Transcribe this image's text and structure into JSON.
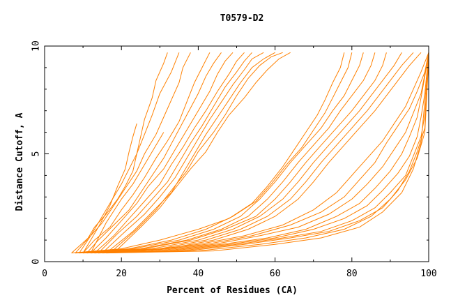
{
  "chart_data": {
    "type": "line",
    "title": "T0579-D2",
    "xlabel": "Percent of Residues (CA)",
    "ylabel": "Distance Cutoff, A",
    "xlim": [
      0,
      100
    ],
    "ylim": [
      0,
      10
    ],
    "x_ticks": [
      "0",
      "20",
      "40",
      "60",
      "80",
      "100"
    ],
    "y_ticks": [
      "0",
      "5",
      "10"
    ],
    "grid": false,
    "line_color": "#FF8000",
    "series": [
      {
        "x": [
          7,
          12,
          14,
          16,
          18,
          20,
          22,
          24,
          25,
          26,
          28,
          29,
          31,
          32
        ],
        "y": [
          0.4,
          1.2,
          1.8,
          2.4,
          3.0,
          3.6,
          4.3,
          5.0,
          5.8,
          6.6,
          7.6,
          8.4,
          9.2,
          9.7
        ]
      },
      {
        "x": [
          8,
          11,
          13,
          16,
          19,
          21,
          23,
          24,
          26,
          28,
          30,
          33,
          35
        ],
        "y": [
          0.4,
          1.0,
          1.6,
          2.2,
          2.9,
          3.5,
          4.2,
          5.0,
          5.9,
          6.8,
          7.8,
          8.8,
          9.7
        ]
      },
      {
        "x": [
          9,
          12,
          15,
          18,
          21,
          24,
          26,
          29,
          31,
          33,
          35,
          36,
          38
        ],
        "y": [
          0.4,
          1.2,
          1.8,
          2.6,
          3.4,
          4.2,
          5.0,
          5.9,
          6.7,
          7.5,
          8.3,
          9.0,
          9.7
        ]
      },
      {
        "x": [
          10,
          13,
          17,
          20,
          23,
          26,
          29,
          32,
          35,
          37,
          39,
          41,
          43
        ],
        "y": [
          0.4,
          1.0,
          1.6,
          2.4,
          3.1,
          3.9,
          4.8,
          5.6,
          6.5,
          7.4,
          8.3,
          9.0,
          9.7
        ]
      },
      {
        "x": [
          11,
          14,
          18,
          22,
          25,
          28,
          31,
          34,
          37,
          40,
          42,
          44,
          46
        ],
        "y": [
          0.4,
          1.0,
          1.7,
          2.4,
          3.2,
          4.0,
          4.8,
          5.8,
          6.8,
          7.8,
          8.6,
          9.2,
          9.7
        ]
      },
      {
        "x": [
          12,
          16,
          20,
          24,
          27,
          31,
          34,
          37,
          40,
          43,
          45,
          47,
          49
        ],
        "y": [
          0.4,
          1.1,
          1.9,
          2.7,
          3.5,
          4.3,
          5.2,
          6.1,
          7.0,
          7.9,
          8.7,
          9.3,
          9.7
        ]
      },
      {
        "x": [
          13,
          18,
          22,
          26,
          30,
          33,
          36,
          39,
          42,
          45,
          48,
          50,
          52
        ],
        "y": [
          0.4,
          1.2,
          2.0,
          2.8,
          3.6,
          4.5,
          5.3,
          6.2,
          7.0,
          7.9,
          8.7,
          9.3,
          9.7
        ]
      },
      {
        "x": [
          14,
          19,
          24,
          28,
          32,
          35,
          38,
          41,
          44,
          47,
          50,
          52,
          54
        ],
        "y": [
          0.4,
          1.3,
          2.1,
          2.9,
          3.7,
          4.6,
          5.5,
          6.3,
          7.2,
          8.1,
          8.8,
          9.3,
          9.7
        ]
      },
      {
        "x": [
          15,
          21,
          26,
          30,
          34,
          37,
          40,
          43,
          46,
          49,
          52,
          54,
          57
        ],
        "y": [
          0.4,
          1.4,
          2.2,
          3.0,
          3.9,
          4.8,
          5.7,
          6.6,
          7.4,
          8.2,
          8.9,
          9.4,
          9.7
        ]
      },
      {
        "x": [
          16,
          23,
          28,
          33,
          36,
          39,
          42,
          45,
          48,
          51,
          54,
          57,
          60
        ],
        "y": [
          0.4,
          1.4,
          2.3,
          3.2,
          4.1,
          5.0,
          5.9,
          6.7,
          7.5,
          8.3,
          9.0,
          9.4,
          9.7
        ]
      },
      {
        "x": [
          17,
          24,
          29,
          33,
          37,
          40,
          44,
          47,
          50,
          53,
          56,
          59,
          62
        ],
        "y": [
          0.4,
          1.5,
          2.4,
          3.3,
          4.2,
          5.1,
          6.0,
          6.8,
          7.7,
          8.5,
          9.1,
          9.5,
          9.7
        ]
      },
      {
        "x": [
          18,
          25,
          30,
          34,
          38,
          42,
          45,
          48,
          52,
          55,
          58,
          61,
          64
        ],
        "y": [
          0.4,
          1.6,
          2.5,
          3.4,
          4.3,
          5.1,
          6.0,
          6.8,
          7.6,
          8.3,
          8.9,
          9.4,
          9.7
        ]
      },
      {
        "x": [
          10,
          14,
          17,
          19,
          21,
          22,
          23,
          24
        ],
        "y": [
          0.4,
          1.6,
          2.6,
          3.5,
          4.3,
          5.1,
          5.8,
          6.4
        ]
      },
      {
        "x": [
          12,
          16,
          20,
          23,
          25,
          27,
          29,
          31
        ],
        "y": [
          0.4,
          1.8,
          2.9,
          3.6,
          4.2,
          4.8,
          5.4,
          6.0
        ]
      },
      {
        "x": [
          7,
          20,
          30,
          40,
          48,
          54,
          58,
          62,
          65,
          68,
          71,
          73,
          75,
          77,
          78
        ],
        "y": [
          0.4,
          0.6,
          1.0,
          1.5,
          2.0,
          2.7,
          3.5,
          4.4,
          5.2,
          6.0,
          6.8,
          7.5,
          8.3,
          9.0,
          9.7
        ]
      },
      {
        "x": [
          8,
          22,
          33,
          42,
          49,
          55,
          59,
          63,
          67,
          70,
          73,
          75,
          77,
          79,
          80
        ],
        "y": [
          0.4,
          0.6,
          1.0,
          1.5,
          2.1,
          2.8,
          3.6,
          4.5,
          5.3,
          6.1,
          6.9,
          7.6,
          8.3,
          9.0,
          9.7
        ]
      },
      {
        "x": [
          9,
          23,
          35,
          44,
          51,
          56,
          60,
          64,
          68,
          72,
          75,
          78,
          80,
          82,
          83
        ],
        "y": [
          0.4,
          0.6,
          1.0,
          1.5,
          2.1,
          2.9,
          3.7,
          4.6,
          5.4,
          6.2,
          7.0,
          7.7,
          8.4,
          9.1,
          9.7
        ]
      },
      {
        "x": [
          10,
          25,
          37,
          46,
          53,
          58,
          62,
          66,
          70,
          74,
          77,
          80,
          83,
          85,
          86
        ],
        "y": [
          0.4,
          0.6,
          1.0,
          1.5,
          2.1,
          2.9,
          3.7,
          4.6,
          5.4,
          6.2,
          7.0,
          7.7,
          8.4,
          9.1,
          9.7
        ]
      },
      {
        "x": [
          11,
          26,
          38,
          47,
          55,
          60,
          64,
          68,
          72,
          76,
          80,
          83,
          86,
          88,
          89
        ],
        "y": [
          0.4,
          0.6,
          1.0,
          1.5,
          2.1,
          2.9,
          3.7,
          4.6,
          5.4,
          6.2,
          7.0,
          7.7,
          8.4,
          9.1,
          9.7
        ]
      },
      {
        "x": [
          12,
          28,
          40,
          49,
          56,
          62,
          66,
          70,
          74,
          78,
          82,
          85,
          88,
          91,
          93
        ],
        "y": [
          0.4,
          0.6,
          1.0,
          1.5,
          2.1,
          2.9,
          3.7,
          4.6,
          5.4,
          6.2,
          7.0,
          7.7,
          8.4,
          9.1,
          9.7
        ]
      },
      {
        "x": [
          13,
          30,
          42,
          51,
          58,
          64,
          68,
          72,
          76,
          80,
          84,
          87,
          90,
          93,
          96
        ],
        "y": [
          0.4,
          0.6,
          1.0,
          1.5,
          2.1,
          2.9,
          3.7,
          4.6,
          5.4,
          6.2,
          7.0,
          7.7,
          8.4,
          9.1,
          9.7
        ]
      },
      {
        "x": [
          14,
          32,
          44,
          53,
          60,
          66,
          70,
          74,
          78,
          82,
          86,
          89,
          92,
          95,
          98
        ],
        "y": [
          0.4,
          0.6,
          1.0,
          1.5,
          2.1,
          2.9,
          3.7,
          4.6,
          5.4,
          6.2,
          7.0,
          7.7,
          8.4,
          9.1,
          9.7
        ]
      },
      {
        "x": [
          8,
          25,
          40,
          52,
          62,
          70,
          76,
          80,
          84,
          88,
          91,
          94,
          96,
          98,
          100
        ],
        "y": [
          0.4,
          0.5,
          0.8,
          1.2,
          1.7,
          2.4,
          3.2,
          4.0,
          4.8,
          5.6,
          6.4,
          7.2,
          8.0,
          8.8,
          9.7
        ]
      },
      {
        "x": [
          9,
          27,
          42,
          54,
          64,
          72,
          78,
          82,
          86,
          89,
          92,
          95,
          97,
          99,
          100
        ],
        "y": [
          0.4,
          0.5,
          0.8,
          1.2,
          1.7,
          2.3,
          3.0,
          3.8,
          4.6,
          5.5,
          6.3,
          7.1,
          7.9,
          8.8,
          9.7
        ]
      },
      {
        "x": [
          10,
          29,
          44,
          56,
          66,
          74,
          80,
          84,
          88,
          91,
          94,
          96,
          98,
          99,
          100
        ],
        "y": [
          0.4,
          0.5,
          0.8,
          1.2,
          1.6,
          2.2,
          2.9,
          3.6,
          4.4,
          5.2,
          6.0,
          6.9,
          7.8,
          8.7,
          9.7
        ]
      },
      {
        "x": [
          11,
          31,
          46,
          58,
          68,
          76,
          82,
          86,
          90,
          93,
          95,
          97,
          98,
          99,
          100
        ],
        "y": [
          0.4,
          0.5,
          0.8,
          1.1,
          1.5,
          2.1,
          2.7,
          3.4,
          4.2,
          5.0,
          5.8,
          6.7,
          7.6,
          8.6,
          9.7
        ]
      },
      {
        "x": [
          12,
          33,
          48,
          60,
          70,
          78,
          84,
          88,
          92,
          95,
          97,
          98,
          99,
          100
        ],
        "y": [
          0.4,
          0.5,
          0.8,
          1.1,
          1.5,
          2.0,
          2.6,
          3.3,
          4.1,
          4.9,
          5.8,
          6.7,
          7.8,
          9.7
        ]
      },
      {
        "x": [
          13,
          35,
          50,
          62,
          72,
          80,
          86,
          90,
          94,
          96,
          98,
          99,
          100
        ],
        "y": [
          0.4,
          0.5,
          0.8,
          1.1,
          1.4,
          1.9,
          2.5,
          3.2,
          4.0,
          4.9,
          5.8,
          6.8,
          9.5
        ]
      },
      {
        "x": [
          14,
          37,
          52,
          64,
          74,
          82,
          88,
          92,
          95,
          97,
          99,
          100
        ],
        "y": [
          0.4,
          0.5,
          0.8,
          1.1,
          1.4,
          1.9,
          2.5,
          3.3,
          4.2,
          5.1,
          6.2,
          9.5
        ]
      },
      {
        "x": [
          15,
          40,
          56,
          68,
          78,
          85,
          90,
          94,
          97,
          99,
          100
        ],
        "y": [
          0.4,
          0.5,
          0.8,
          1.1,
          1.5,
          2.1,
          2.9,
          3.8,
          4.8,
          6.0,
          9.4
        ]
      },
      {
        "x": [
          16,
          44,
          60,
          72,
          82,
          88,
          93,
          96,
          98,
          100
        ],
        "y": [
          0.4,
          0.5,
          0.8,
          1.1,
          1.6,
          2.3,
          3.2,
          4.3,
          5.5,
          9.4
        ]
      }
    ]
  }
}
